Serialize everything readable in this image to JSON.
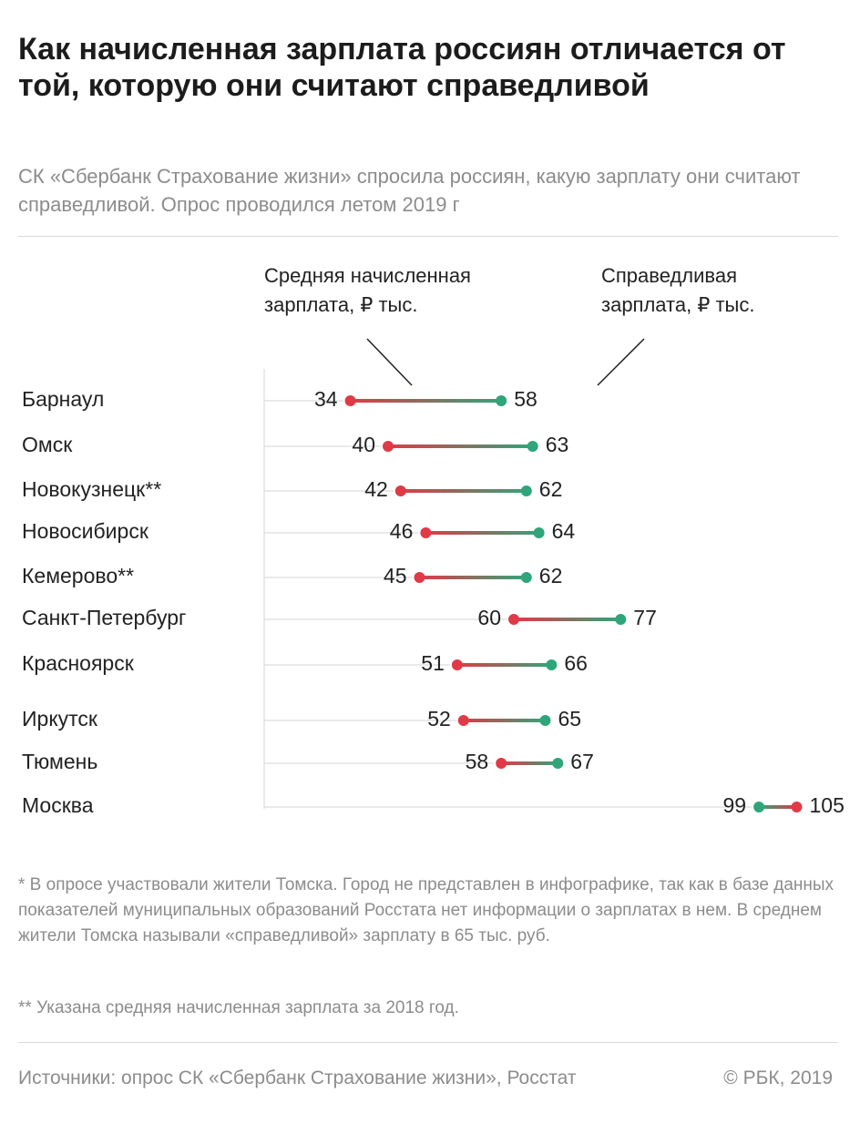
{
  "header": {
    "title": "Как начисленная зарплата россиян отличается от той, которую они считают справедливой",
    "subtitle": "СК «Сбербанк Страхование жизни» спросила россиян, какую зарплату они считают справедливой. Опрос проводился летом 2019 г"
  },
  "colors": {
    "actual": "#e03a46",
    "fair": "#2fa57a",
    "grid": "#d6d6d6"
  },
  "chart_data": {
    "type": "dumbbell",
    "legend": {
      "actual": [
        "Средняя начисленная",
        "зарплата, ₽ тыс."
      ],
      "fair": [
        "Справедливая",
        "зарплата, ₽ тыс."
      ]
    },
    "categories": [
      "Барнаул",
      "Омск",
      "Новокузнецк**",
      "Новосибирск",
      "Кемерово**",
      "Санкт-Петербург",
      "Красноярск",
      "Иркутск",
      "Тюмень",
      "Москва"
    ],
    "series": [
      {
        "name": "Средняя начисленная зарплата, ₽ тыс.",
        "key": "actual",
        "values": [
          34,
          40,
          42,
          46,
          45,
          60,
          51,
          52,
          58,
          105
        ]
      },
      {
        "name": "Справедливая зарплата, ₽ тыс.",
        "key": "fair",
        "values": [
          58,
          63,
          62,
          64,
          62,
          77,
          66,
          65,
          67,
          99
        ]
      }
    ],
    "grid": true
  },
  "notes": {
    "note1": "* В опросе участвовали жители Томска. Город не представлен в инфографике, так как в базе данных показателей муниципальных образований Росстата нет информации о зарплатах в нем. В среднем жители Томска называли «справедливой» зарплату в 65 тыс. руб.",
    "note2": "** Указана средняя начисленная зарплата за 2018 год."
  },
  "footer": {
    "source": "Источники: опрос СК «Сбербанк Страхование жизни», Росстат",
    "copyright": "© РБК, 2019"
  }
}
